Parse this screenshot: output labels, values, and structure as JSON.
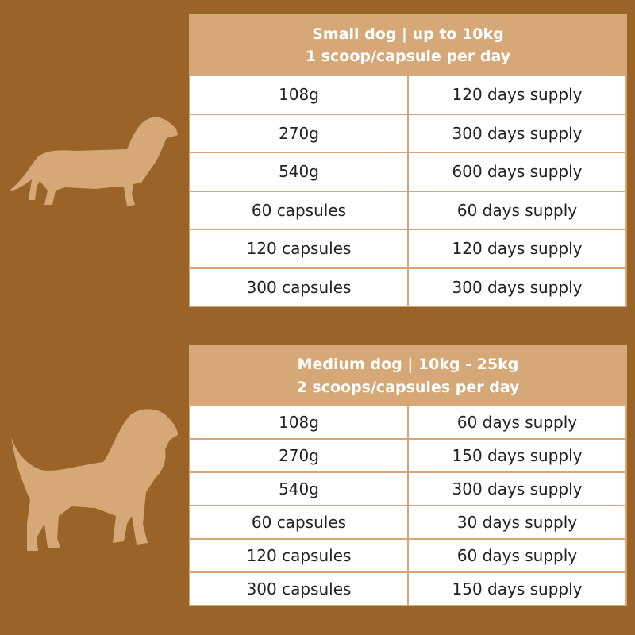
{
  "tables": [
    {
      "title": [
        "Small dog | up to 10kg",
        "1 scoop/capsule per day"
      ],
      "rows": [
        [
          "108g",
          "120 days supply"
        ],
        [
          "270g",
          "300 days supply"
        ],
        [
          "540g",
          "600 days supply"
        ],
        [
          "60 capsules",
          "60 days supply"
        ],
        [
          "120 capsules",
          "120 days supply"
        ],
        [
          "300 capsules",
          "300 days supply"
        ]
      ]
    },
    {
      "title": [
        "Medium dog | 10kg - 25kg",
        "2 scoops/capsules per day"
      ],
      "rows": [
        [
          "108g",
          "60 days supply"
        ],
        [
          "270g",
          "150 days supply"
        ],
        [
          "540g",
          "300 days supply"
        ],
        [
          "60 capsules",
          "30 days supply"
        ],
        [
          "120 capsules",
          "60 days supply"
        ],
        [
          "300 capsules",
          "150 days supply"
        ]
      ]
    }
  ]
}
